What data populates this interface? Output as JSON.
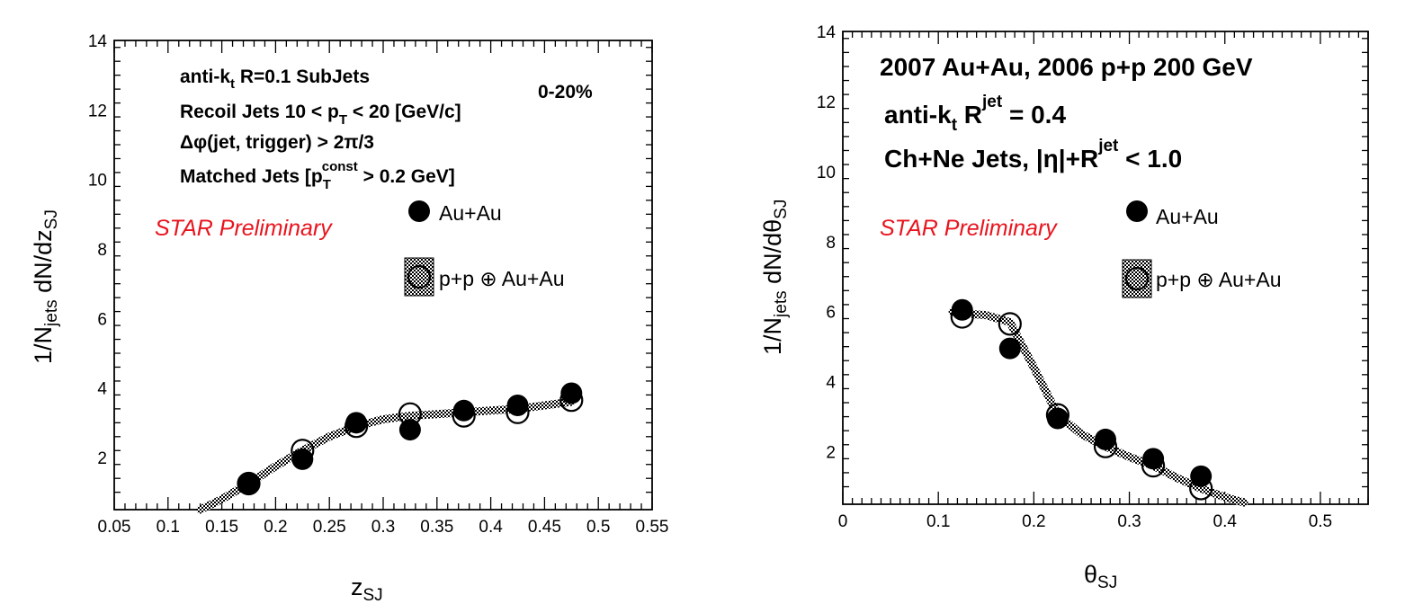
{
  "chart_data": [
    {
      "type": "scatter",
      "xlabel": "z_SJ",
      "ylabel": "1/N_jets dN/dz_SJ",
      "xlim": [
        0.05,
        0.55
      ],
      "ylim": [
        0.5,
        14
      ],
      "x_ticks": [
        "0.05",
        "0.1",
        "0.15",
        "0.2",
        "0.25",
        "0.3",
        "0.35",
        "0.4",
        "0.45",
        "0.5",
        "0.55"
      ],
      "y_ticks": [
        "2",
        "4",
        "6",
        "8",
        "10",
        "12",
        "14"
      ],
      "annotations": [
        "anti-kt R=0.1 SubJets",
        "Recoil Jets 10 < pT < 20 [GeV/c]",
        "Δφ(jet, trigger) > 2π/3",
        "Matched Jets [pT const > 0.2 GeV]",
        "0-20%"
      ],
      "preliminary_label": "STAR Preliminary",
      "series": [
        {
          "name": "Au+Au",
          "marker": "filled-circle",
          "x": [
            0.175,
            0.225,
            0.275,
            0.325,
            0.375,
            0.425,
            0.475
          ],
          "y": [
            1.25,
            1.95,
            3.0,
            2.8,
            3.35,
            3.5,
            3.85
          ]
        },
        {
          "name": "p+p ⊕ Au+Au",
          "marker": "open-circle",
          "x": [
            0.175,
            0.225,
            0.275,
            0.325,
            0.375,
            0.425,
            0.475
          ],
          "y": [
            1.25,
            2.2,
            2.9,
            3.25,
            3.2,
            3.3,
            3.65
          ]
        }
      ],
      "band": {
        "x": [
          0.13,
          0.15,
          0.175,
          0.2,
          0.225,
          0.25,
          0.275,
          0.3,
          0.325,
          0.35,
          0.375,
          0.4,
          0.425,
          0.45,
          0.475
        ],
        "y": [
          0.5,
          0.8,
          1.25,
          1.75,
          2.2,
          2.6,
          2.9,
          3.1,
          3.2,
          3.25,
          3.3,
          3.35,
          3.4,
          3.5,
          3.6
        ]
      }
    },
    {
      "type": "scatter",
      "xlabel": "θ_SJ",
      "ylabel": "1/N_jets dN/dθ_SJ",
      "xlim": [
        0,
        0.55
      ],
      "ylim": [
        0.5,
        14
      ],
      "x_ticks": [
        "0",
        "0.1",
        "0.2",
        "0.3",
        "0.4",
        "0.5"
      ],
      "y_ticks": [
        "2",
        "4",
        "6",
        "8",
        "10",
        "12",
        "14"
      ],
      "annotations": [
        "2007 Au+Au, 2006 p+p 200 GeV",
        "anti-kt R jet = 0.4",
        "Ch+Ne Jets, |η|+R jet < 1.0"
      ],
      "preliminary_label": "STAR Preliminary",
      "series": [
        {
          "name": "Au+Au",
          "marker": "filled-circle",
          "x": [
            0.125,
            0.175,
            0.225,
            0.275,
            0.325,
            0.375
          ],
          "y": [
            6.05,
            4.95,
            2.95,
            2.35,
            1.8,
            1.3
          ]
        },
        {
          "name": "p+p ⊕ Au+Au",
          "marker": "open-circle",
          "x": [
            0.125,
            0.175,
            0.225,
            0.275,
            0.325,
            0.375
          ],
          "y": [
            5.85,
            5.65,
            3.05,
            2.15,
            1.6,
            0.95
          ]
        }
      ],
      "band": {
        "x": [
          0.115,
          0.125,
          0.15,
          0.175,
          0.2,
          0.225,
          0.25,
          0.275,
          0.3,
          0.325,
          0.35,
          0.375,
          0.4,
          0.42
        ],
        "y": [
          6.0,
          5.95,
          5.9,
          5.7,
          4.4,
          3.05,
          2.5,
          2.15,
          1.85,
          1.6,
          1.25,
          0.95,
          0.7,
          0.55
        ]
      }
    }
  ]
}
